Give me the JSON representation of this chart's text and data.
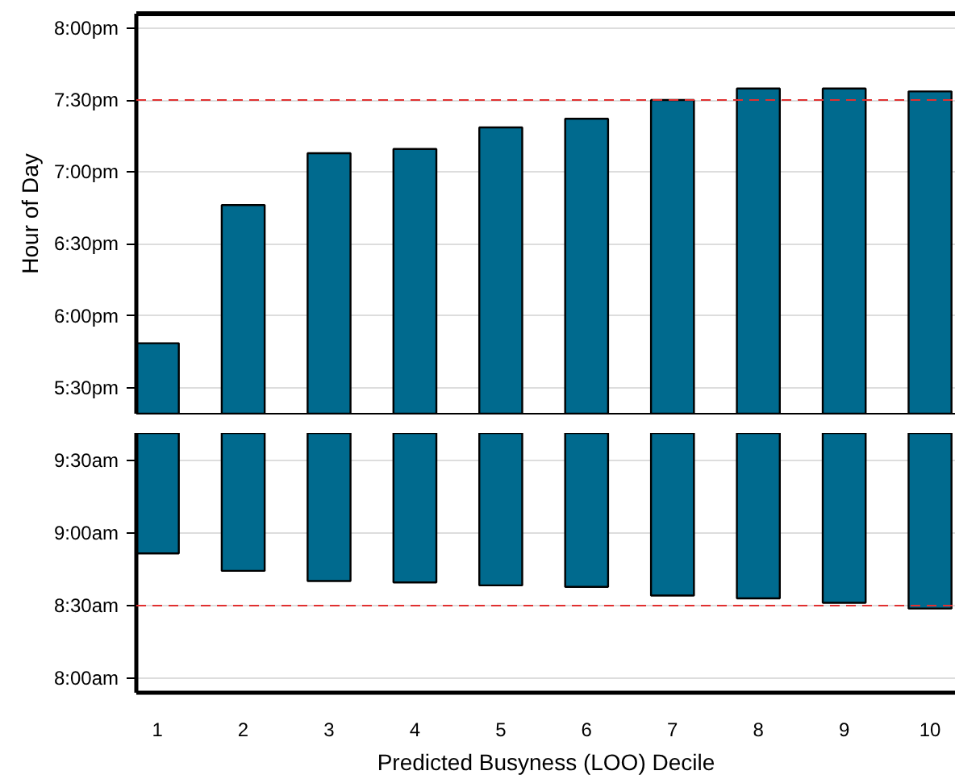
{
  "chart_data": [
    {
      "type": "bar",
      "ylabel": "Hour of Day",
      "categories": [
        "1",
        "2",
        "3",
        "4",
        "5",
        "6",
        "7",
        "8",
        "9",
        "10"
      ],
      "base": [
        17.32,
        17.32,
        17.32,
        17.32,
        17.32,
        17.32,
        17.32,
        17.32,
        17.32,
        17.32
      ],
      "values": [
        0.49,
        1.45,
        1.81,
        1.84,
        1.99,
        2.05,
        2.18,
        2.26,
        2.26,
        2.24
      ],
      "color": "#006a8e",
      "ylim": [
        17.32,
        20.1
      ],
      "yticks": [
        {
          "value": 17.5,
          "label": "5:30pm"
        },
        {
          "value": 18,
          "label": "6:00pm"
        },
        {
          "value": 18.5,
          "label": "6:30pm"
        },
        {
          "value": 19,
          "label": "7:00pm"
        },
        {
          "value": 19.5,
          "label": "7:30pm"
        },
        {
          "value": 20,
          "label": "8:00pm"
        }
      ],
      "grid": "y",
      "tick_labels": "y",
      "ref_lines": [
        {
          "axis": "y",
          "value": 19.5,
          "color": "#e03030",
          "line_style": "dashed"
        }
      ]
    },
    {
      "type": "bar",
      "xlabel": "Predicted Busyness (LOO) Decile",
      "categories": [
        "1",
        "2",
        "3",
        "4",
        "5",
        "6",
        "7",
        "8",
        "9",
        "10"
      ],
      "base": [
        9.69,
        9.69,
        9.69,
        9.69,
        9.69,
        9.69,
        9.69,
        9.69,
        9.69,
        9.69
      ],
      "values": [
        -0.83,
        -0.95,
        -1.02,
        -1.03,
        -1.05,
        -1.06,
        -1.12,
        -1.14,
        -1.17,
        -1.21
      ],
      "color": "#006a8e",
      "ylim": [
        7.9,
        9.69
      ],
      "yticks": [
        {
          "value": 8,
          "label": "8:00am"
        },
        {
          "value": 8.5,
          "label": "8:30am"
        },
        {
          "value": 9,
          "label": "9:00am"
        },
        {
          "value": 9.5,
          "label": "9:30am"
        }
      ],
      "grid": "y",
      "ref_lines": [
        {
          "axis": "y",
          "value": 8.5,
          "color": "#e03030",
          "line_style": "dashed"
        }
      ]
    }
  ]
}
